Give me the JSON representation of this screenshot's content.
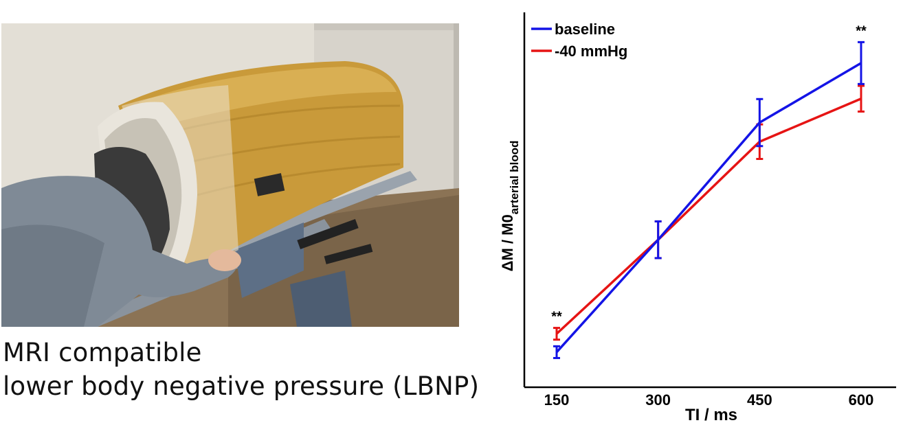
{
  "caption": {
    "line1": "MRI compatible",
    "line2": "lower body negative pressure (LBNP)"
  },
  "chart_data": {
    "type": "line",
    "x": [
      150,
      300,
      450,
      600
    ],
    "xticklabels": [
      "150",
      "300",
      "450",
      "600"
    ],
    "xlabel": "TI / ms",
    "ylabel": "ΔM / M0",
    "ylabel_subscript": "arterial blood",
    "ylim": [
      0,
      100
    ],
    "grid": false,
    "legend_position": "top-left",
    "yticks_shown": false,
    "series": [
      {
        "name": "baseline",
        "color": "#1414e6",
        "values": [
          6,
          36.6,
          68.5,
          84.7
        ],
        "err": [
          1.6,
          5,
          6.4,
          5.7
        ]
      },
      {
        "name": "-40 mmHg",
        "color": "#e61414",
        "values": [
          11,
          36.6,
          63.3,
          75
        ],
        "err": [
          1.6,
          5,
          4.7,
          3.5
        ]
      }
    ],
    "annotations": [
      {
        "text": "**",
        "x": 150
      },
      {
        "text": "**",
        "x": 600
      }
    ]
  }
}
